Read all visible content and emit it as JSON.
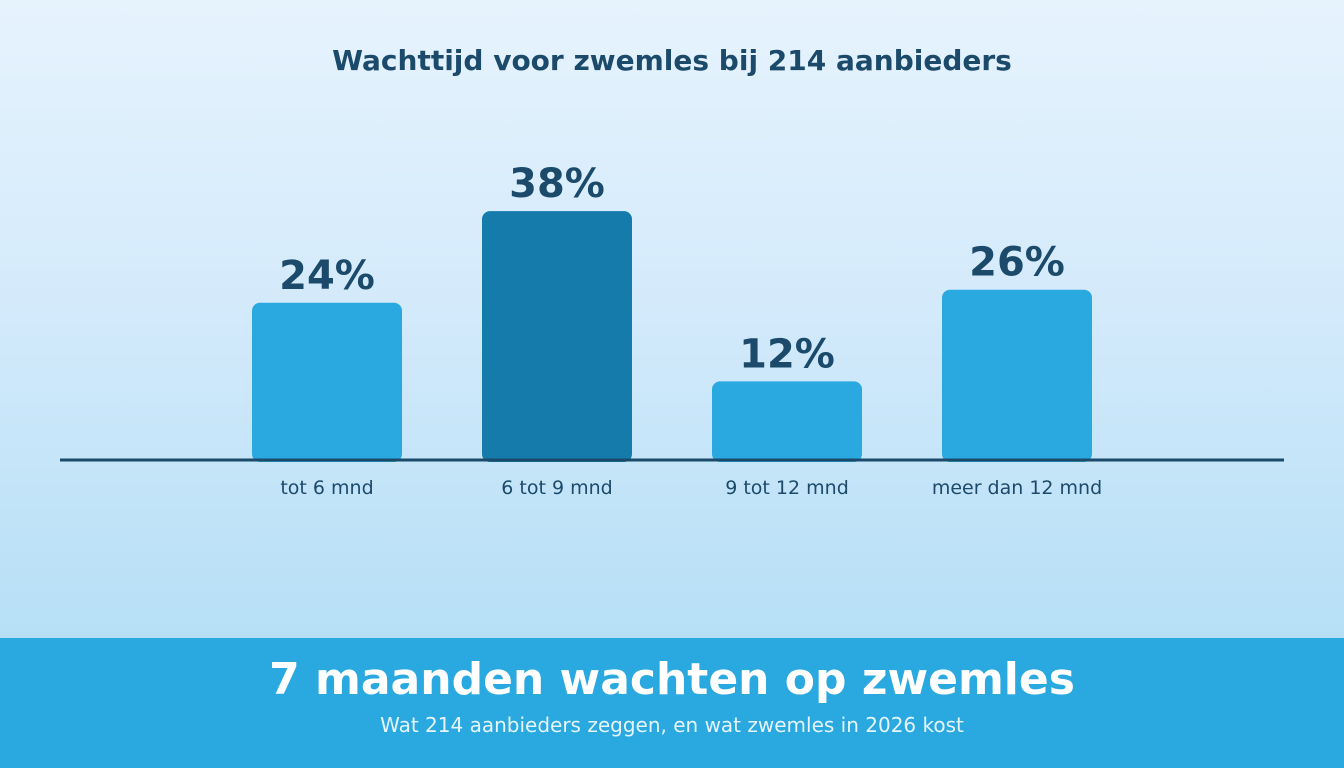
{
  "chart_data": {
    "type": "bar",
    "title": "Wachttijd voor zwemles bij 214 aanbieders",
    "categories": [
      "tot 6 mnd",
      "6 tot 9 mnd",
      "9 tot 12 mnd",
      "meer dan 12 mnd"
    ],
    "values": [
      24,
      38,
      12,
      26
    ],
    "value_labels": [
      "24%",
      "38%",
      "12%",
      "26%"
    ],
    "unit": "%",
    "highlight_index": 1,
    "ylim": [
      0,
      40
    ],
    "grid": false,
    "legend": "none",
    "colors": {
      "bar": "#2aa9e0",
      "highlight": "#147bab",
      "label": "#1b4a6b",
      "axis": "#1b4a6b"
    }
  },
  "banner": {
    "title": "7 maanden wachten op zwemles",
    "subtitle": "Wat 214 aanbieders zeggen, en wat zwemles in 2026 kost",
    "color": "#2aa9e0"
  }
}
